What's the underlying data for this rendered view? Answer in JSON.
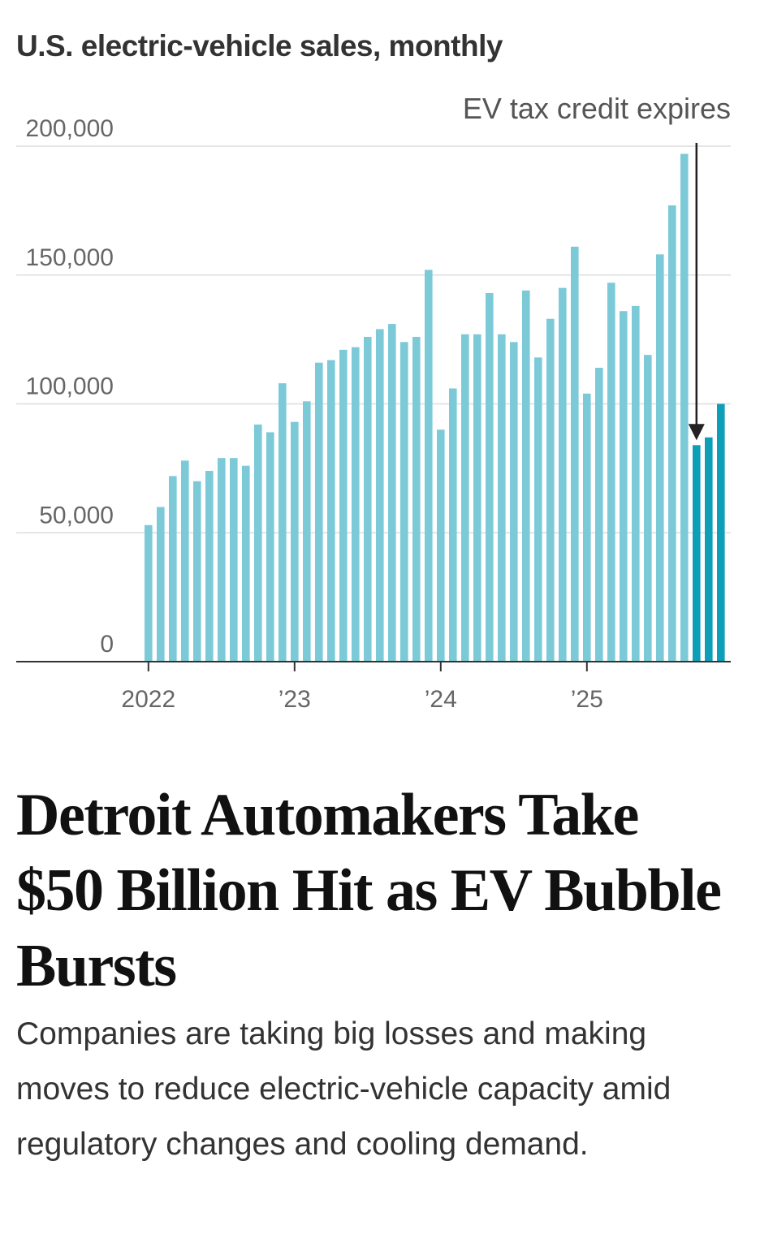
{
  "chart_data": {
    "type": "bar",
    "title": "U.S. electric-vehicle sales, monthly",
    "xlabel": "",
    "ylabel": "",
    "ylim": [
      0,
      200000
    ],
    "yticks": [
      {
        "value": 0,
        "label": "0"
      },
      {
        "value": 50000,
        "label": "50,000"
      },
      {
        "value": 100000,
        "label": "100,000"
      },
      {
        "value": 150000,
        "label": "150,000"
      },
      {
        "value": 200000,
        "label": "200,000"
      }
    ],
    "xticks": [
      {
        "index": 0,
        "label": "2022"
      },
      {
        "index": 12,
        "label": "’23"
      },
      {
        "index": 24,
        "label": "’24"
      },
      {
        "index": 36,
        "label": "’25"
      }
    ],
    "grid": true,
    "colors": {
      "before": "#7ccad8",
      "after": "#0d9fb7"
    },
    "highlight_from_index": 45,
    "categories": [
      "2022-01",
      "2022-02",
      "2022-03",
      "2022-04",
      "2022-05",
      "2022-06",
      "2022-07",
      "2022-08",
      "2022-09",
      "2022-10",
      "2022-11",
      "2022-12",
      "2023-01",
      "2023-02",
      "2023-03",
      "2023-04",
      "2023-05",
      "2023-06",
      "2023-07",
      "2023-08",
      "2023-09",
      "2023-10",
      "2023-11",
      "2023-12",
      "2024-01",
      "2024-02",
      "2024-03",
      "2024-04",
      "2024-05",
      "2024-06",
      "2024-07",
      "2024-08",
      "2024-09",
      "2024-10",
      "2024-11",
      "2024-12",
      "2025-01",
      "2025-02",
      "2025-03",
      "2025-04",
      "2025-05",
      "2025-06",
      "2025-07",
      "2025-08",
      "2025-09",
      "2025-10",
      "2025-11",
      "2025-12"
    ],
    "values": [
      53000,
      60000,
      72000,
      78000,
      70000,
      74000,
      79000,
      79000,
      76000,
      92000,
      89000,
      108000,
      93000,
      101000,
      116000,
      117000,
      121000,
      122000,
      126000,
      129000,
      131000,
      124000,
      126000,
      152000,
      90000,
      106000,
      127000,
      127000,
      143000,
      127000,
      124000,
      144000,
      118000,
      133000,
      145000,
      161000,
      104000,
      114000,
      147000,
      136000,
      138000,
      119000,
      158000,
      177000,
      197000,
      84000,
      87000,
      100000
    ],
    "annotation": {
      "text": "EV tax credit expires",
      "index": 45
    }
  },
  "headline": "Detroit Automakers Take $50 Billion Hit as EV Bubble Bursts",
  "dek": "Companies are taking big losses and making moves to reduce electric-vehicle capacity amid regulatory changes and cooling demand."
}
